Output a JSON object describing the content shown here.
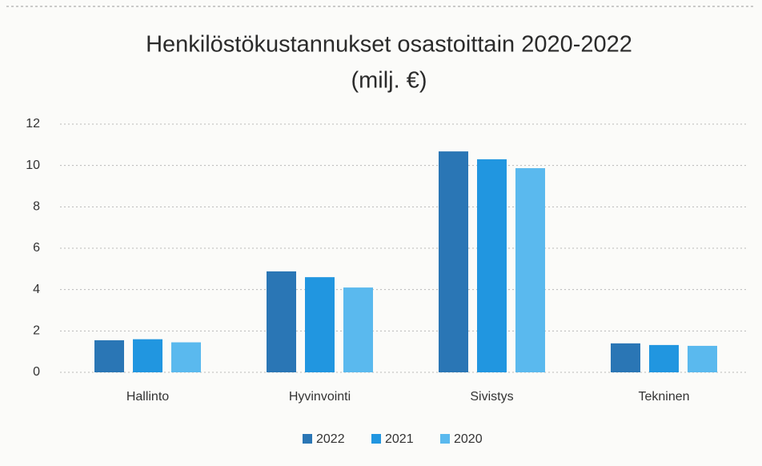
{
  "chart_data": {
    "type": "bar",
    "title": "Henkilöstökustannukset osastoittain 2020-2022",
    "subtitle": "(milj. €)",
    "categories": [
      "Hallinto",
      "Hyvinvointi",
      "Sivistys",
      "Tekninen"
    ],
    "series": [
      {
        "name": "2022",
        "color": "#2a76b5",
        "values": [
          1.55,
          4.88,
          10.68,
          1.4
        ]
      },
      {
        "name": "2021",
        "color": "#2196e0",
        "values": [
          1.6,
          4.6,
          10.3,
          1.32
        ]
      },
      {
        "name": "2020",
        "color": "#5ab9ee",
        "values": [
          1.45,
          4.1,
          9.87,
          1.28
        ]
      }
    ],
    "ylim": [
      0,
      12
    ],
    "yticks": [
      0,
      2,
      4,
      6,
      8,
      10,
      12
    ],
    "grid": true,
    "legend": "bottom"
  }
}
